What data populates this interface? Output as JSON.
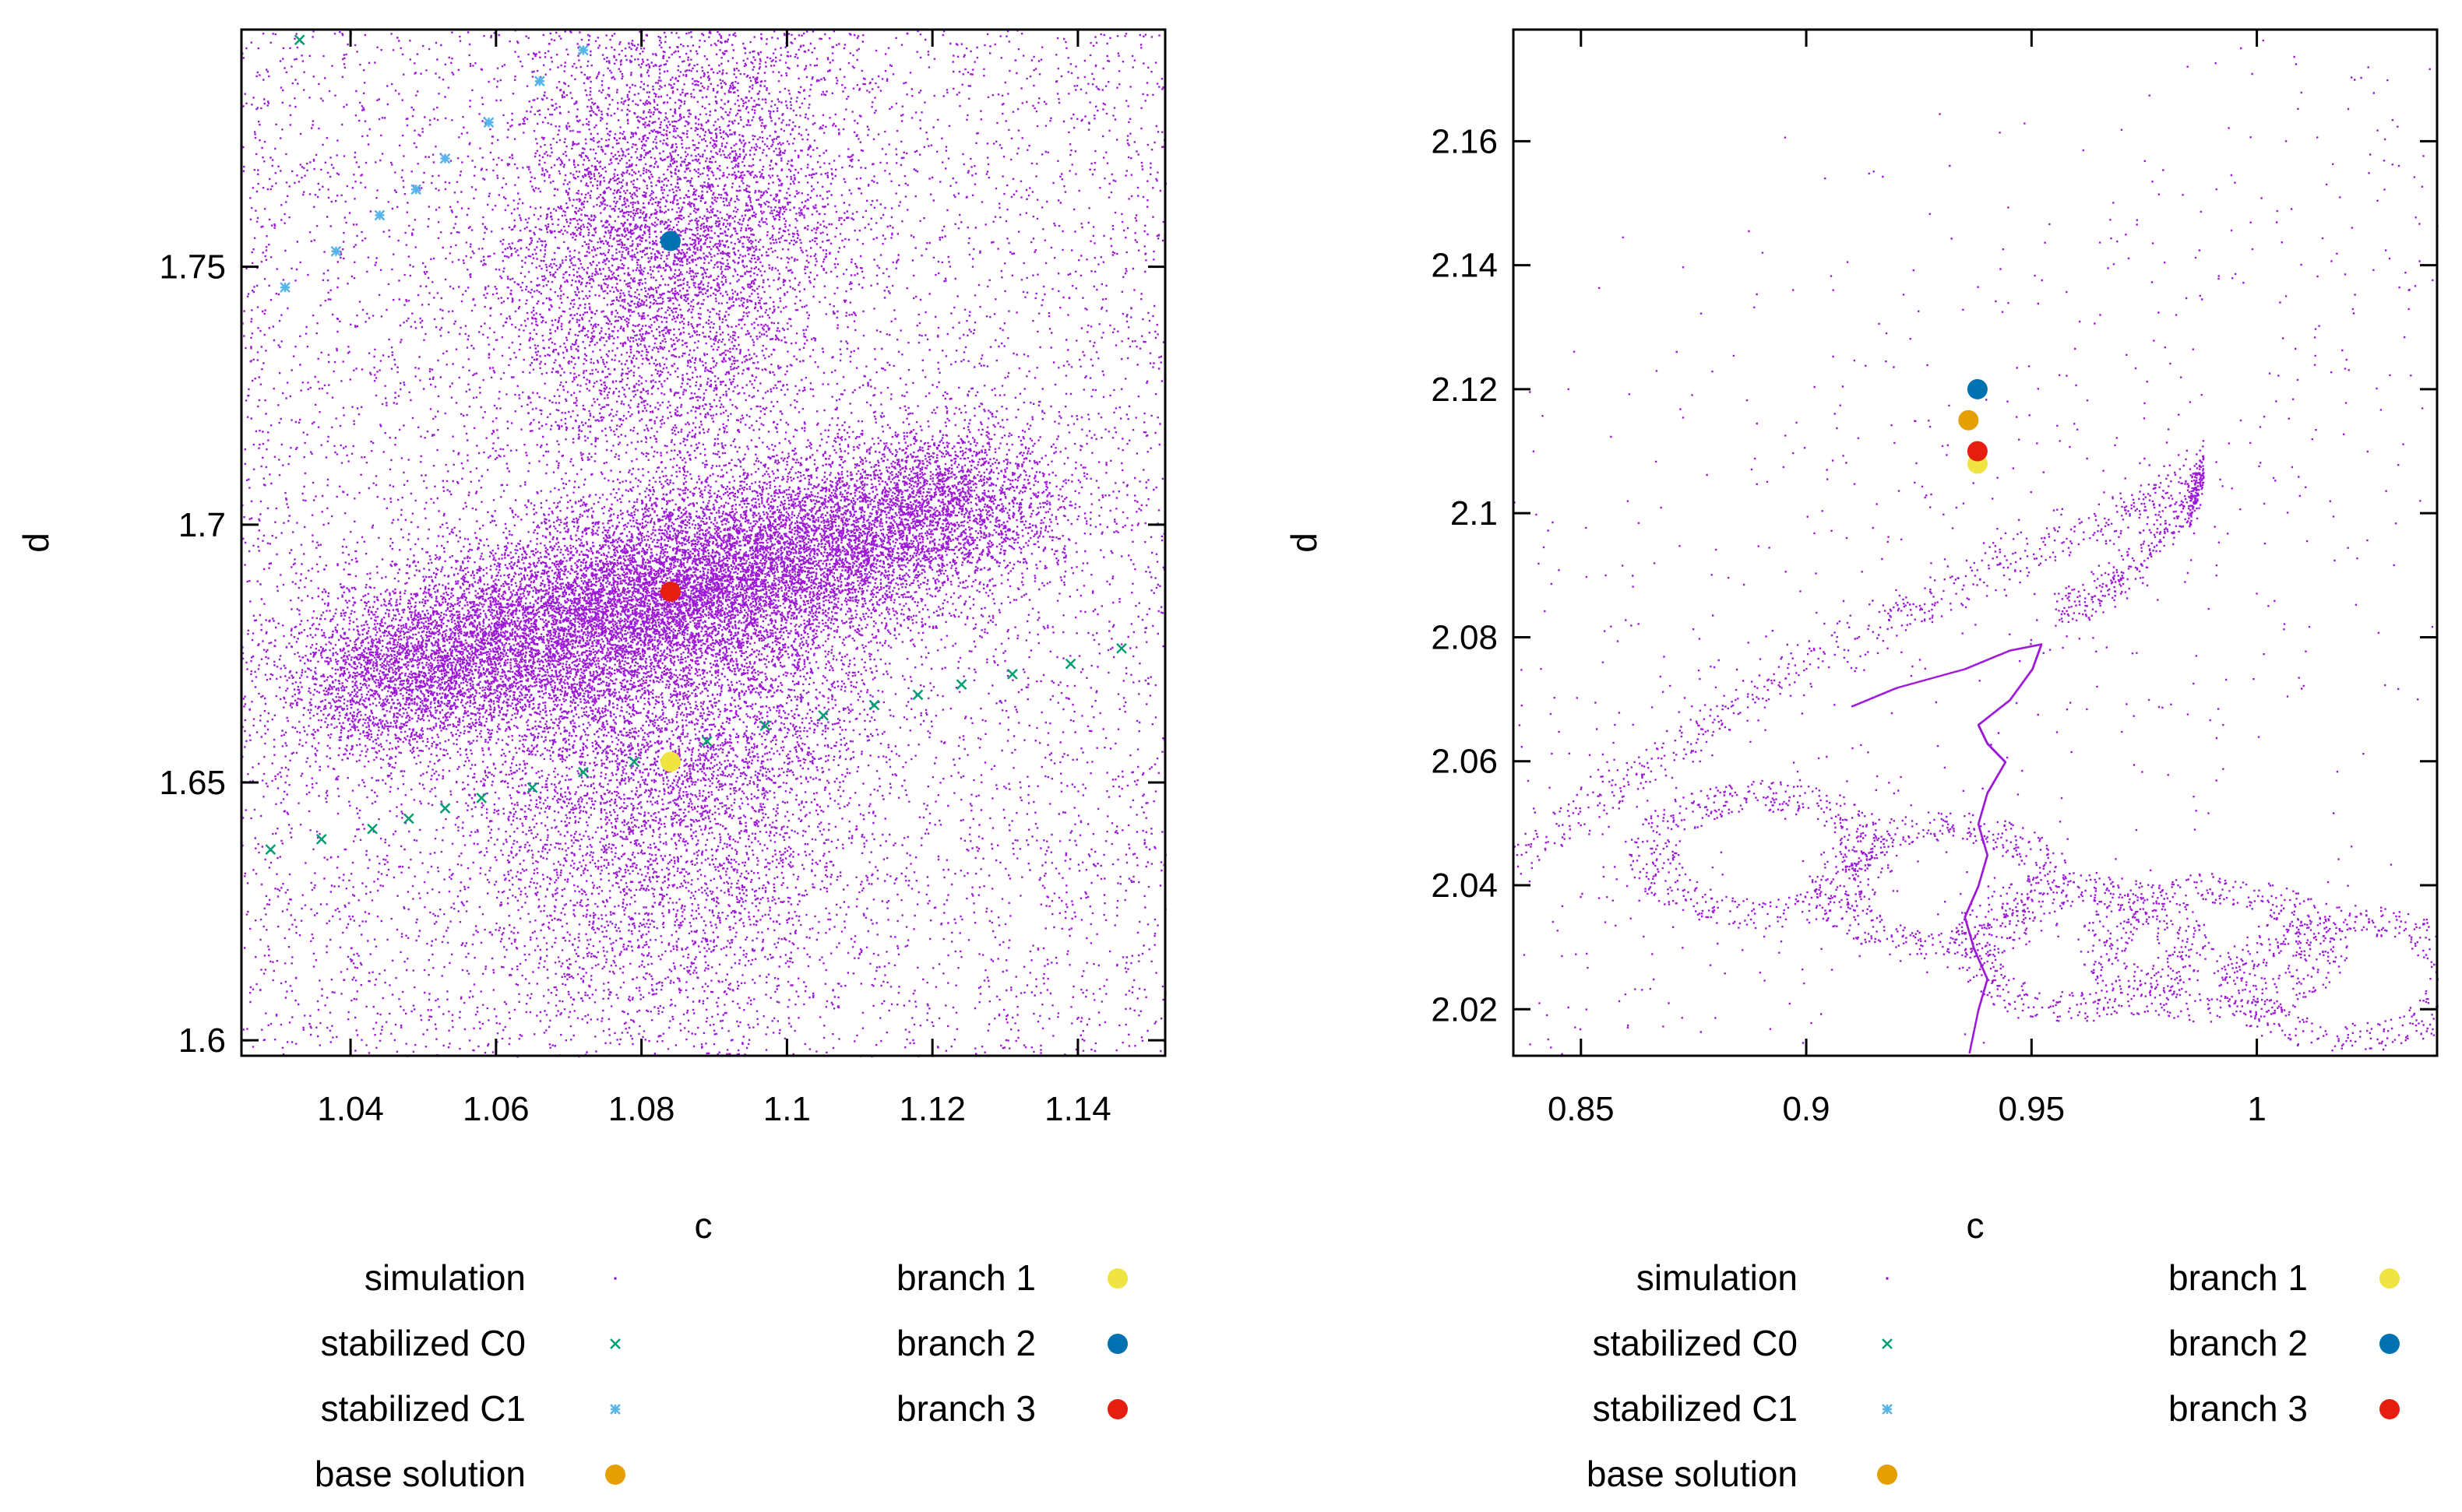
{
  "colors": {
    "simulation": "#9400d3",
    "stabilized_c0": "#009e73",
    "stabilized_c1": "#56b4e9",
    "base_solution": "#e69f00",
    "branch_1": "#f0e442",
    "branch_2": "#0072b2",
    "branch_3": "#e51e10"
  },
  "chart_data": [
    {
      "type": "scatter",
      "title": "",
      "xlabel": "c",
      "ylabel": "d",
      "xlim": [
        1.025,
        1.152
      ],
      "ylim": [
        1.597,
        1.796
      ],
      "xticks": [
        1.04,
        1.06,
        1.08,
        1.1,
        1.12,
        1.14
      ],
      "xtick_labels": [
        "1.04",
        "1.06",
        "1.08",
        "1.1",
        "1.12",
        "1.14"
      ],
      "yticks": [
        1.6,
        1.65,
        1.7,
        1.75
      ],
      "ytick_labels": [
        "1.6",
        "1.65",
        "1.7",
        "1.75"
      ],
      "grid": false,
      "legend": {
        "placement": "below",
        "entries": [
          {
            "key": "simulation",
            "label": "simulation",
            "marker": "dot"
          },
          {
            "key": "stabilized_c0",
            "label": "stabilized C0",
            "marker": "cross"
          },
          {
            "key": "stabilized_c1",
            "label": "stabilized C1",
            "marker": "star"
          },
          {
            "key": "base_solution",
            "label": "base solution",
            "marker": "circle"
          },
          {
            "key": "branch_1",
            "label": "branch 1",
            "marker": "circle"
          },
          {
            "key": "branch_2",
            "label": "branch 2",
            "marker": "circle"
          },
          {
            "key": "branch_3",
            "label": "branch 3",
            "marker": "circle"
          }
        ]
      },
      "series": [
        {
          "name": "simulation",
          "key": "simulation",
          "marker": "dot",
          "structure": "dense chaotic point cloud around three equilibria",
          "centers": [
            [
              1.084,
              1.755
            ],
            [
              1.084,
              1.687
            ],
            [
              1.084,
              1.654
            ]
          ]
        },
        {
          "name": "stabilized C0",
          "key": "stabilized_c0",
          "marker": "cross",
          "points": [
            [
              1.029,
              1.637
            ],
            [
              1.036,
              1.639
            ],
            [
              1.043,
              1.641
            ],
            [
              1.048,
              1.643
            ],
            [
              1.053,
              1.645
            ],
            [
              1.058,
              1.647
            ],
            [
              1.065,
              1.649
            ],
            [
              1.072,
              1.652
            ],
            [
              1.079,
              1.654
            ],
            [
              1.089,
              1.658
            ],
            [
              1.097,
              1.661
            ],
            [
              1.105,
              1.663
            ],
            [
              1.112,
              1.665
            ],
            [
              1.118,
              1.667
            ],
            [
              1.124,
              1.669
            ],
            [
              1.131,
              1.671
            ],
            [
              1.139,
              1.673
            ],
            [
              1.146,
              1.676
            ],
            [
              1.033,
              1.794
            ]
          ]
        },
        {
          "name": "stabilized C1",
          "key": "stabilized_c1",
          "marker": "star",
          "points": [
            [
              1.031,
              1.746
            ],
            [
              1.038,
              1.753
            ],
            [
              1.044,
              1.76
            ],
            [
              1.049,
              1.765
            ],
            [
              1.053,
              1.771
            ],
            [
              1.059,
              1.778
            ],
            [
              1.066,
              1.786
            ],
            [
              1.072,
              1.792
            ]
          ]
        },
        {
          "name": "branch 1",
          "key": "branch_1",
          "marker": "circle",
          "points": [
            [
              1.084,
              1.654
            ]
          ]
        },
        {
          "name": "branch 2",
          "key": "branch_2",
          "marker": "circle",
          "points": [
            [
              1.084,
              1.755
            ]
          ]
        },
        {
          "name": "branch 3",
          "key": "branch_3",
          "marker": "circle",
          "points": [
            [
              1.084,
              1.687
            ]
          ]
        }
      ]
    },
    {
      "type": "scatter",
      "title": "",
      "xlabel": "c",
      "ylabel": "d",
      "xlim": [
        0.835,
        1.04
      ],
      "ylim": [
        2.0125,
        2.178
      ],
      "xticks": [
        0.85,
        0.9,
        0.95,
        1.0
      ],
      "xtick_labels": [
        "0.85",
        "0.9",
        "0.95",
        "1"
      ],
      "yticks": [
        2.02,
        2.04,
        2.06,
        2.08,
        2.1,
        2.12,
        2.14,
        2.16
      ],
      "ytick_labels": [
        "2.02",
        "2.04",
        "2.06",
        "2.08",
        "2.1",
        "2.12",
        "2.14",
        "2.16"
      ],
      "grid": false,
      "legend": {
        "placement": "below",
        "entries": [
          {
            "key": "simulation",
            "label": "simulation",
            "marker": "dot"
          },
          {
            "key": "stabilized_c0",
            "label": "stabilized C0",
            "marker": "cross"
          },
          {
            "key": "stabilized_c1",
            "label": "stabilized C1",
            "marker": "star"
          },
          {
            "key": "base_solution",
            "label": "base solution",
            "marker": "circle"
          },
          {
            "key": "branch_1",
            "label": "branch 1",
            "marker": "circle"
          },
          {
            "key": "branch_2",
            "label": "branch 2",
            "marker": "circle"
          },
          {
            "key": "branch_3",
            "label": "branch 3",
            "marker": "circle"
          }
        ]
      },
      "series": [
        {
          "name": "simulation",
          "key": "simulation",
          "marker": "dot",
          "structure": "sparse trajectory points: diagonal band, loops and a meandering path near c=0.94",
          "trajectory": [
            [
              0.91,
              2.069
            ],
            [
              0.92,
              2.072
            ],
            [
              0.935,
              2.075
            ],
            [
              0.945,
              2.078
            ],
            [
              0.952,
              2.079
            ],
            [
              0.95,
              2.075
            ],
            [
              0.945,
              2.07
            ],
            [
              0.938,
              2.066
            ],
            [
              0.94,
              2.063
            ],
            [
              0.944,
              2.06
            ],
            [
              0.94,
              2.055
            ],
            [
              0.938,
              2.05
            ],
            [
              0.94,
              2.045
            ],
            [
              0.938,
              2.04
            ],
            [
              0.935,
              2.035
            ],
            [
              0.937,
              2.03
            ],
            [
              0.94,
              2.025
            ],
            [
              0.938,
              2.02
            ],
            [
              0.936,
              2.013
            ]
          ],
          "diagonal_band": [
            [
              0.835,
              2.045
            ],
            [
              0.87,
              2.062
            ],
            [
              0.905,
              2.078
            ],
            [
              0.94,
              2.091
            ],
            [
              0.97,
              2.1
            ],
            [
              0.988,
              2.107
            ],
            [
              0.985,
              2.101
            ],
            [
              0.97,
              2.09
            ],
            [
              0.955,
              2.083
            ]
          ],
          "loop_centers": [
            [
              0.93,
              2.04
            ],
            [
              0.96,
              2.03
            ],
            [
              0.99,
              2.03
            ],
            [
              1.02,
              2.025
            ],
            [
              0.89,
              2.045
            ]
          ]
        },
        {
          "name": "base solution",
          "key": "base_solution",
          "marker": "circle",
          "points": [
            [
              0.936,
              2.115
            ]
          ]
        },
        {
          "name": "branch 1",
          "key": "branch_1",
          "marker": "circle",
          "points": [
            [
              0.938,
              2.108
            ]
          ]
        },
        {
          "name": "branch 2",
          "key": "branch_2",
          "marker": "circle",
          "points": [
            [
              0.938,
              2.12
            ]
          ]
        },
        {
          "name": "branch 3",
          "key": "branch_3",
          "marker": "circle",
          "points": [
            [
              0.938,
              2.11
            ]
          ]
        }
      ]
    }
  ]
}
